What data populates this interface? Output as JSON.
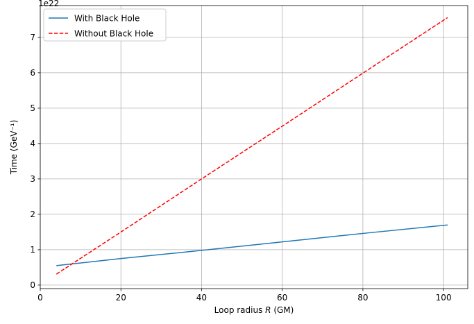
{
  "chart_data": {
    "type": "line",
    "xlabel": {
      "prefix": "Loop radius ",
      "var": "R",
      "suffix": " (GM)"
    },
    "ylabel": "Time (GeV⁻¹)",
    "y_offset_label": "1e22",
    "xlim": [
      0,
      106
    ],
    "ylim": [
      -0.1,
      7.9
    ],
    "xticks": [
      0,
      20,
      40,
      60,
      80,
      100
    ],
    "yticks": [
      0,
      1,
      2,
      3,
      4,
      5,
      6,
      7
    ],
    "grid": true,
    "legend_position": "upper-left",
    "series": [
      {
        "name": "With Black Hole",
        "color": "#1f77b4",
        "style": "solid",
        "x": [
          4,
          20,
          40,
          60,
          80,
          101
        ],
        "y": [
          0.55,
          0.75,
          0.98,
          1.22,
          1.46,
          1.7
        ]
      },
      {
        "name": "Without Black Hole",
        "color": "#ff0000",
        "style": "dashed",
        "x": [
          4,
          20,
          40,
          60,
          80,
          101
        ],
        "y": [
          0.31,
          1.5,
          3.0,
          4.49,
          5.99,
          7.56
        ]
      }
    ]
  }
}
